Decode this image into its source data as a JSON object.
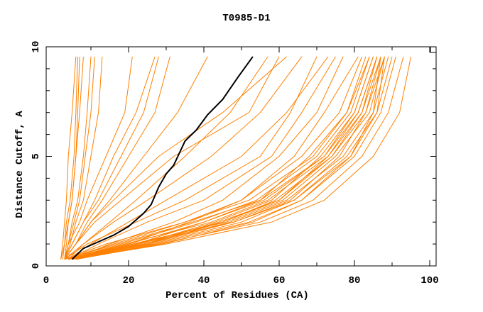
{
  "chart_data": {
    "type": "line",
    "title": "T0985-D1",
    "xlabel": "Percent of Residues (CA)",
    "ylabel": "Distance Cutoff, A",
    "xlim": [
      0,
      100
    ],
    "ylim": [
      0,
      10
    ],
    "xticks": [
      0,
      20,
      40,
      60,
      80,
      100
    ],
    "yticks": [
      0,
      5,
      10
    ],
    "grid": false,
    "legend": "none",
    "colors": {
      "models": "#ff8000",
      "highlight": "#000000"
    },
    "y_levels": [
      0.3,
      1,
      2,
      3,
      5,
      7,
      9.55
    ],
    "series_x": [
      [
        4,
        22,
        45,
        60,
        74,
        82,
        86
      ],
      [
        5,
        25,
        48,
        63,
        76,
        83,
        87
      ],
      [
        3,
        20,
        40,
        56,
        72,
        80,
        85
      ],
      [
        5,
        27,
        52,
        66,
        79,
        86,
        90
      ],
      [
        4,
        24,
        47,
        62,
        77,
        85,
        89
      ],
      [
        6,
        28,
        55,
        69,
        82,
        89,
        93
      ],
      [
        5,
        30,
        58,
        72,
        85,
        92,
        95
      ],
      [
        4,
        18,
        38,
        54,
        70,
        79,
        84
      ],
      [
        3,
        16,
        35,
        52,
        69,
        78,
        83
      ],
      [
        5,
        23,
        43,
        58,
        71,
        80,
        85
      ],
      [
        4,
        21,
        46,
        61,
        75,
        84,
        88
      ],
      [
        6,
        26,
        50,
        64,
        78,
        86,
        88
      ],
      [
        4,
        19,
        42,
        57,
        73,
        81,
        86
      ],
      [
        5,
        24,
        44,
        60,
        73,
        82,
        87
      ],
      [
        3,
        17,
        37,
        55,
        72,
        81,
        86
      ],
      [
        5,
        22,
        40,
        55,
        68,
        78,
        84
      ],
      [
        4,
        20,
        36,
        50,
        66,
        76,
        82
      ],
      [
        6,
        29,
        53,
        66,
        80,
        87,
        91
      ],
      [
        4,
        22,
        48,
        64,
        79,
        85,
        87
      ],
      [
        5,
        25,
        45,
        59,
        74,
        83,
        88
      ],
      [
        4,
        8,
        16,
        25,
        42,
        55,
        66
      ],
      [
        4,
        10,
        20,
        30,
        50,
        62,
        73
      ],
      [
        3,
        9,
        22,
        35,
        55,
        63,
        70
      ],
      [
        4,
        12,
        25,
        40,
        58,
        66,
        75
      ],
      [
        5,
        15,
        32,
        45,
        60,
        70,
        77
      ],
      [
        3,
        14,
        35,
        50,
        64,
        72,
        81
      ],
      [
        3,
        6,
        10,
        16,
        28,
        45,
        62
      ],
      [
        3,
        6,
        11,
        18,
        32,
        52,
        60
      ],
      [
        3,
        8,
        15,
        22,
        35,
        47,
        57
      ],
      [
        3,
        5,
        8,
        11,
        16,
        22,
        27
      ],
      [
        3,
        5,
        8,
        12,
        18,
        24,
        28
      ],
      [
        3,
        6,
        9,
        13,
        20,
        27,
        31
      ],
      [
        3,
        4,
        7,
        9,
        14,
        19,
        21
      ],
      [
        3,
        6,
        10,
        15,
        24,
        33,
        41
      ],
      [
        2,
        3,
        4,
        5,
        6,
        7,
        8
      ],
      [
        3,
        3.5,
        4,
        5,
        6,
        6.5,
        7
      ],
      [
        2.5,
        3,
        3.5,
        4.5,
        5.5,
        6,
        6.5
      ],
      [
        3,
        4,
        5,
        6.5,
        8,
        9,
        10
      ],
      [
        3,
        4,
        5.5,
        7,
        8.5,
        10,
        11
      ],
      [
        3,
        4.5,
        6,
        8,
        10,
        12,
        13
      ],
      [
        2,
        2.5,
        3,
        3.5,
        4,
        5,
        6
      ]
    ],
    "highlight_series": [
      [
        5,
        0.3
      ],
      [
        8,
        0.8
      ],
      [
        12,
        1.1
      ],
      [
        16,
        1.4
      ],
      [
        20,
        1.8
      ],
      [
        24,
        2.4
      ],
      [
        26,
        2.8
      ],
      [
        28,
        3.6
      ],
      [
        30,
        4.2
      ],
      [
        32,
        4.6
      ],
      [
        35,
        5.7
      ],
      [
        38,
        6.2
      ],
      [
        41,
        6.9
      ],
      [
        45,
        7.6
      ],
      [
        49,
        8.6
      ],
      [
        53,
        9.55
      ]
    ]
  }
}
